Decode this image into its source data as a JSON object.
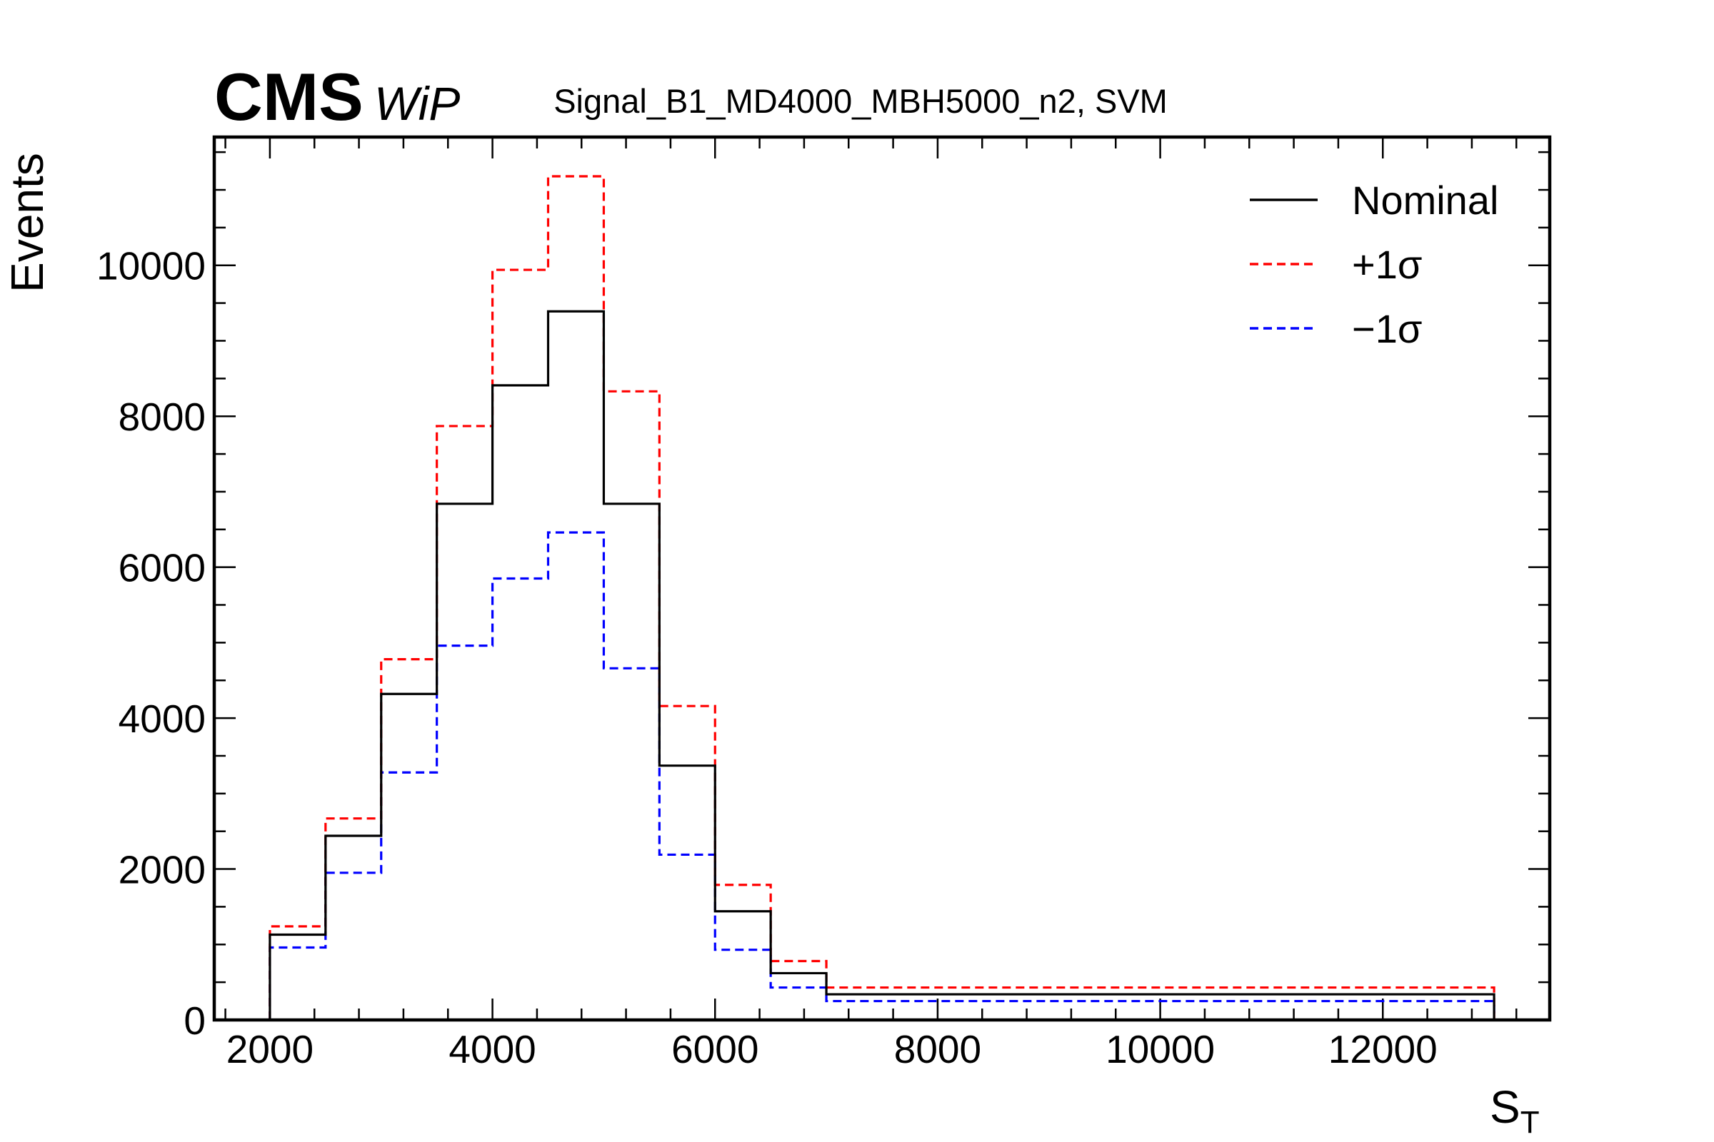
{
  "chart_data": {
    "type": "histogram",
    "experiment_label": "CMS",
    "status_label": "WiP",
    "title": "Signal_B1_MD4000_MBH5000_n2, SVM",
    "xlabel_main": "S",
    "xlabel_sub": "T",
    "ylabel": "Events",
    "xlim": [
      1500,
      13500
    ],
    "ylim": [
      0,
      11700
    ],
    "x_ticks": [
      2000,
      4000,
      6000,
      8000,
      10000,
      12000
    ],
    "y_ticks": [
      0,
      2000,
      4000,
      6000,
      8000,
      10000
    ],
    "bin_edges": [
      2000,
      2500,
      3000,
      3500,
      4000,
      4500,
      5000,
      5500,
      6000,
      6500,
      7000,
      13000
    ],
    "legend_position": "top-right",
    "series": [
      {
        "name": "Nominal",
        "style": "solid",
        "color": "#000000",
        "values": [
          1130,
          2440,
          4320,
          6840,
          8410,
          9390,
          6840,
          3370,
          1440,
          620,
          340
        ]
      },
      {
        "name": "+1σ",
        "style": "dashed",
        "color": "#ff0000",
        "values": [
          1240,
          2670,
          4780,
          7870,
          9940,
          11180,
          8330,
          4160,
          1790,
          780,
          430
        ]
      },
      {
        "name": "−1σ",
        "style": "dashed",
        "color": "#0000ff",
        "values": [
          960,
          1950,
          3280,
          4960,
          5850,
          6460,
          4660,
          2190,
          930,
          430,
          250
        ]
      }
    ]
  }
}
